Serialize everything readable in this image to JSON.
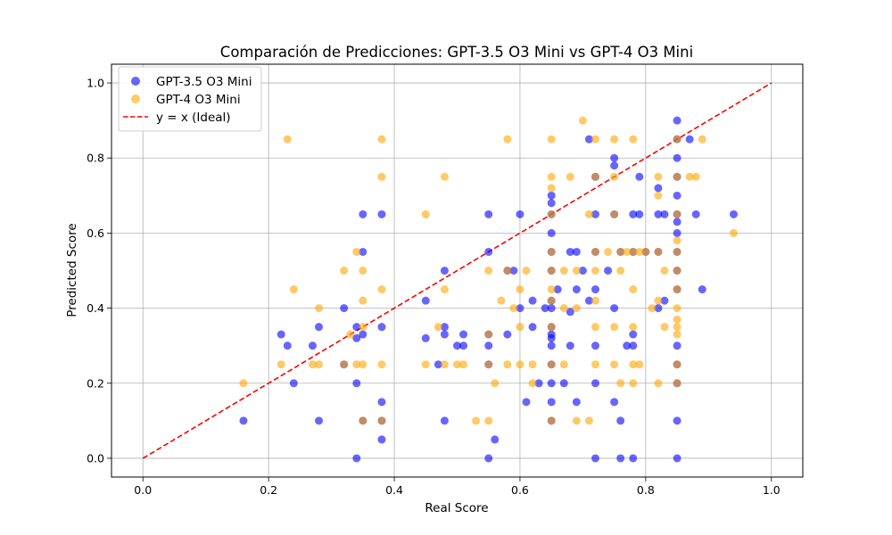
{
  "chart_data": {
    "type": "scatter",
    "title": "Comparación de Predicciones: GPT-3.5 O3 Mini vs GPT-4 O3 Mini",
    "xlabel": "Real Score",
    "ylabel": "Predicted Score",
    "xlim": [
      -0.05,
      1.05
    ],
    "ylim": [
      -0.05,
      1.05
    ],
    "xticks": [
      "0.0",
      "0.2",
      "0.4",
      "0.6",
      "0.8",
      "1.0"
    ],
    "yticks": [
      "0.0",
      "0.2",
      "0.4",
      "0.6",
      "0.8",
      "1.0"
    ],
    "grid": true,
    "legend_position": "top-left",
    "series": [
      {
        "name": "GPT-3.5 O3 Mini",
        "color": "#0000ff",
        "alpha": 0.6,
        "points": [
          [
            0.16,
            0.1
          ],
          [
            0.22,
            0.33
          ],
          [
            0.23,
            0.3
          ],
          [
            0.24,
            0.2
          ],
          [
            0.27,
            0.3
          ],
          [
            0.28,
            0.1
          ],
          [
            0.28,
            0.35
          ],
          [
            0.32,
            0.4
          ],
          [
            0.32,
            0.25
          ],
          [
            0.34,
            0.32
          ],
          [
            0.34,
            0.35
          ],
          [
            0.34,
            0.0
          ],
          [
            0.34,
            0.2
          ],
          [
            0.35,
            0.65
          ],
          [
            0.35,
            0.55
          ],
          [
            0.35,
            0.33
          ],
          [
            0.35,
            0.1
          ],
          [
            0.38,
            0.35
          ],
          [
            0.38,
            0.15
          ],
          [
            0.38,
            0.05
          ],
          [
            0.38,
            0.65
          ],
          [
            0.38,
            0.1
          ],
          [
            0.45,
            0.42
          ],
          [
            0.45,
            0.32
          ],
          [
            0.47,
            0.25
          ],
          [
            0.48,
            0.5
          ],
          [
            0.48,
            0.35
          ],
          [
            0.48,
            0.33
          ],
          [
            0.48,
            0.1
          ],
          [
            0.5,
            0.3
          ],
          [
            0.51,
            0.33
          ],
          [
            0.51,
            0.3
          ],
          [
            0.55,
            0.65
          ],
          [
            0.55,
            0.55
          ],
          [
            0.55,
            0.33
          ],
          [
            0.55,
            0.3
          ],
          [
            0.55,
            0.0
          ],
          [
            0.55,
            0.25
          ],
          [
            0.56,
            0.05
          ],
          [
            0.58,
            0.5
          ],
          [
            0.58,
            0.33
          ],
          [
            0.59,
            0.5
          ],
          [
            0.6,
            0.65
          ],
          [
            0.6,
            0.4
          ],
          [
            0.61,
            0.15
          ],
          [
            0.62,
            0.42
          ],
          [
            0.62,
            0.35
          ],
          [
            0.63,
            0.2
          ],
          [
            0.64,
            0.4
          ],
          [
            0.65,
            0.65
          ],
          [
            0.65,
            0.7
          ],
          [
            0.65,
            0.68
          ],
          [
            0.65,
            0.6
          ],
          [
            0.65,
            0.55
          ],
          [
            0.65,
            0.5
          ],
          [
            0.65,
            0.42
          ],
          [
            0.65,
            0.4
          ],
          [
            0.65,
            0.35
          ],
          [
            0.65,
            0.33
          ],
          [
            0.65,
            0.32
          ],
          [
            0.65,
            0.3
          ],
          [
            0.65,
            0.25
          ],
          [
            0.65,
            0.2
          ],
          [
            0.65,
            0.15
          ],
          [
            0.65,
            0.1
          ],
          [
            0.66,
            0.45
          ],
          [
            0.67,
            0.2
          ],
          [
            0.68,
            0.55
          ],
          [
            0.68,
            0.39
          ],
          [
            0.68,
            0.3
          ],
          [
            0.69,
            0.55
          ],
          [
            0.69,
            0.45
          ],
          [
            0.69,
            0.15
          ],
          [
            0.7,
            0.5
          ],
          [
            0.71,
            0.85
          ],
          [
            0.71,
            0.42
          ],
          [
            0.72,
            0.75
          ],
          [
            0.72,
            0.65
          ],
          [
            0.72,
            0.55
          ],
          [
            0.72,
            0.45
          ],
          [
            0.72,
            0.3
          ],
          [
            0.72,
            0.2
          ],
          [
            0.72,
            0.0
          ],
          [
            0.74,
            0.5
          ],
          [
            0.75,
            0.8
          ],
          [
            0.75,
            0.78
          ],
          [
            0.75,
            0.65
          ],
          [
            0.75,
            0.4
          ],
          [
            0.75,
            0.15
          ],
          [
            0.76,
            0.55
          ],
          [
            0.76,
            0.0
          ],
          [
            0.76,
            0.1
          ],
          [
            0.77,
            0.3
          ],
          [
            0.78,
            0.65
          ],
          [
            0.78,
            0.55
          ],
          [
            0.78,
            0.33
          ],
          [
            0.78,
            0.3
          ],
          [
            0.78,
            0.0
          ],
          [
            0.79,
            0.75
          ],
          [
            0.79,
            0.65
          ],
          [
            0.8,
            0.55
          ],
          [
            0.82,
            0.72
          ],
          [
            0.82,
            0.65
          ],
          [
            0.82,
            0.55
          ],
          [
            0.82,
            0.4
          ],
          [
            0.83,
            0.65
          ],
          [
            0.83,
            0.42
          ],
          [
            0.85,
            0.9
          ],
          [
            0.85,
            0.85
          ],
          [
            0.85,
            0.8
          ],
          [
            0.85,
            0.75
          ],
          [
            0.85,
            0.7
          ],
          [
            0.85,
            0.65
          ],
          [
            0.85,
            0.63
          ],
          [
            0.85,
            0.6
          ],
          [
            0.85,
            0.55
          ],
          [
            0.85,
            0.5
          ],
          [
            0.85,
            0.45
          ],
          [
            0.85,
            0.3
          ],
          [
            0.85,
            0.25
          ],
          [
            0.85,
            0.2
          ],
          [
            0.85,
            0.1
          ],
          [
            0.85,
            0.0
          ],
          [
            0.87,
            0.85
          ],
          [
            0.88,
            0.65
          ],
          [
            0.89,
            0.45
          ],
          [
            0.94,
            0.65
          ]
        ]
      },
      {
        "name": "GPT-4 O3 Mini",
        "color": "#ffa500",
        "alpha": 0.6,
        "points": [
          [
            0.16,
            0.2
          ],
          [
            0.22,
            0.25
          ],
          [
            0.23,
            0.85
          ],
          [
            0.24,
            0.45
          ],
          [
            0.27,
            0.25
          ],
          [
            0.28,
            0.4
          ],
          [
            0.28,
            0.25
          ],
          [
            0.32,
            0.5
          ],
          [
            0.32,
            0.25
          ],
          [
            0.33,
            0.33
          ],
          [
            0.34,
            0.55
          ],
          [
            0.34,
            0.25
          ],
          [
            0.35,
            0.5
          ],
          [
            0.35,
            0.42
          ],
          [
            0.35,
            0.35
          ],
          [
            0.35,
            0.25
          ],
          [
            0.35,
            0.1
          ],
          [
            0.38,
            0.85
          ],
          [
            0.38,
            0.75
          ],
          [
            0.38,
            0.45
          ],
          [
            0.38,
            0.25
          ],
          [
            0.38,
            0.1
          ],
          [
            0.45,
            0.65
          ],
          [
            0.45,
            0.25
          ],
          [
            0.47,
            0.35
          ],
          [
            0.48,
            0.75
          ],
          [
            0.48,
            0.45
          ],
          [
            0.48,
            0.25
          ],
          [
            0.5,
            0.25
          ],
          [
            0.51,
            0.25
          ],
          [
            0.53,
            0.1
          ],
          [
            0.55,
            0.5
          ],
          [
            0.55,
            0.33
          ],
          [
            0.55,
            0.25
          ],
          [
            0.55,
            0.1
          ],
          [
            0.56,
            0.2
          ],
          [
            0.57,
            0.42
          ],
          [
            0.58,
            0.85
          ],
          [
            0.58,
            0.5
          ],
          [
            0.58,
            0.25
          ],
          [
            0.59,
            0.4
          ],
          [
            0.6,
            0.45
          ],
          [
            0.6,
            0.35
          ],
          [
            0.6,
            0.25
          ],
          [
            0.61,
            0.5
          ],
          [
            0.62,
            0.25
          ],
          [
            0.62,
            0.2
          ],
          [
            0.65,
            0.85
          ],
          [
            0.65,
            0.75
          ],
          [
            0.65,
            0.72
          ],
          [
            0.65,
            0.65
          ],
          [
            0.65,
            0.55
          ],
          [
            0.65,
            0.5
          ],
          [
            0.65,
            0.45
          ],
          [
            0.65,
            0.42
          ],
          [
            0.65,
            0.35
          ],
          [
            0.65,
            0.25
          ],
          [
            0.65,
            0.1
          ],
          [
            0.67,
            0.5
          ],
          [
            0.67,
            0.4
          ],
          [
            0.67,
            0.25
          ],
          [
            0.68,
            0.75
          ],
          [
            0.69,
            0.5
          ],
          [
            0.69,
            0.4
          ],
          [
            0.69,
            0.1
          ],
          [
            0.7,
            0.9
          ],
          [
            0.71,
            0.65
          ],
          [
            0.71,
            0.1
          ],
          [
            0.72,
            0.85
          ],
          [
            0.72,
            0.75
          ],
          [
            0.72,
            0.55
          ],
          [
            0.72,
            0.5
          ],
          [
            0.72,
            0.42
          ],
          [
            0.72,
            0.35
          ],
          [
            0.72,
            0.25
          ],
          [
            0.74,
            0.55
          ],
          [
            0.75,
            0.85
          ],
          [
            0.75,
            0.75
          ],
          [
            0.75,
            0.65
          ],
          [
            0.75,
            0.35
          ],
          [
            0.75,
            0.25
          ],
          [
            0.76,
            0.55
          ],
          [
            0.76,
            0.5
          ],
          [
            0.76,
            0.2
          ],
          [
            0.77,
            0.55
          ],
          [
            0.78,
            0.85
          ],
          [
            0.78,
            0.55
          ],
          [
            0.78,
            0.45
          ],
          [
            0.78,
            0.35
          ],
          [
            0.78,
            0.25
          ],
          [
            0.78,
            0.2
          ],
          [
            0.79,
            0.55
          ],
          [
            0.79,
            0.25
          ],
          [
            0.8,
            0.55
          ],
          [
            0.81,
            0.4
          ],
          [
            0.82,
            0.75
          ],
          [
            0.82,
            0.7
          ],
          [
            0.82,
            0.55
          ],
          [
            0.82,
            0.42
          ],
          [
            0.82,
            0.2
          ],
          [
            0.83,
            0.5
          ],
          [
            0.83,
            0.35
          ],
          [
            0.85,
            0.85
          ],
          [
            0.85,
            0.75
          ],
          [
            0.85,
            0.65
          ],
          [
            0.85,
            0.58
          ],
          [
            0.85,
            0.55
          ],
          [
            0.85,
            0.5
          ],
          [
            0.85,
            0.45
          ],
          [
            0.85,
            0.4
          ],
          [
            0.85,
            0.37
          ],
          [
            0.85,
            0.35
          ],
          [
            0.85,
            0.33
          ],
          [
            0.85,
            0.25
          ],
          [
            0.85,
            0.2
          ],
          [
            0.87,
            0.75
          ],
          [
            0.88,
            0.75
          ],
          [
            0.89,
            0.85
          ],
          [
            0.94,
            0.6
          ]
        ]
      }
    ],
    "reference_line": {
      "name": "y = x (Ideal)",
      "color": "#ff0000",
      "style": "dashed",
      "from": [
        0.0,
        0.0
      ],
      "to": [
        1.0,
        1.0
      ]
    }
  }
}
